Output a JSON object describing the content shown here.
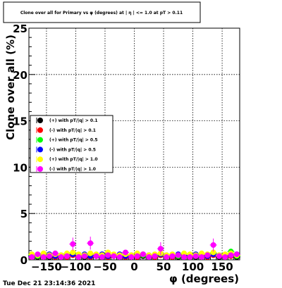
{
  "title": "Clone  over all for Primary vs φ (degrees) at | η | <= 1.0 at pT > 0.11",
  "timestamp": "Tue Dec 21 23:14:36 2021",
  "chart_data": {
    "type": "scatter",
    "xlabel": "φ (degrees)",
    "ylabel": "Clone  over all (%)",
    "xlim": [
      -180,
      180
    ],
    "ylim": [
      0,
      25
    ],
    "xticks": [
      "−150",
      "−100",
      "−50",
      "0",
      "50",
      "100",
      "150"
    ],
    "xtick_values": [
      -150,
      -100,
      -50,
      0,
      50,
      100,
      150
    ],
    "yticks": [
      "0",
      "5",
      "10",
      "15",
      "20",
      "25"
    ],
    "ytick_values": [
      0,
      5,
      10,
      15,
      20,
      25
    ],
    "grid": true,
    "legend_position": "left-middle",
    "x": [
      -175,
      -165,
      -155,
      -145,
      -135,
      -125,
      -115,
      -105,
      -95,
      -85,
      -75,
      -65,
      -55,
      -45,
      -35,
      -25,
      -15,
      -5,
      5,
      15,
      25,
      35,
      45,
      55,
      65,
      75,
      85,
      95,
      105,
      115,
      125,
      135,
      145,
      155,
      165,
      175
    ],
    "series": [
      {
        "name": "(+) with pT/|q| > 0.1",
        "color": "#000000",
        "values": [
          0.4,
          0.3,
          0.5,
          0.3,
          0.4,
          0.3,
          0.5,
          0.6,
          0.4,
          0.3,
          0.5,
          0.4,
          0.3,
          0.5,
          0.4,
          0.3,
          0.4,
          0.3,
          0.5,
          0.4,
          0.3,
          0.4,
          0.5,
          0.3,
          0.4,
          0.3,
          0.5,
          0.4,
          0.3,
          0.5,
          0.4,
          0.6,
          0.3,
          0.4,
          0.5,
          0.3
        ]
      },
      {
        "name": "(-) with pT/|q| > 0.1",
        "color": "#ff0000",
        "values": [
          0.3,
          0.4,
          0.3,
          0.5,
          0.3,
          0.4,
          0.3,
          0.5,
          0.4,
          0.5,
          0.3,
          0.4,
          0.5,
          0.3,
          0.4,
          0.5,
          0.3,
          0.4,
          0.3,
          0.5,
          0.4,
          0.3,
          0.5,
          0.4,
          0.3,
          0.5,
          0.4,
          0.3,
          0.5,
          0.4,
          0.3,
          0.5,
          0.4,
          0.3,
          0.4,
          0.5
        ]
      },
      {
        "name": "(+) with pT/|q| > 0.5",
        "color": "#00ff00",
        "values": [
          0.5,
          0.4,
          0.6,
          0.4,
          0.5,
          0.4,
          0.6,
          0.7,
          0.5,
          0.4,
          0.6,
          0.5,
          0.4,
          0.6,
          0.5,
          0.4,
          0.5,
          0.4,
          0.6,
          0.5,
          0.4,
          0.5,
          0.6,
          0.4,
          0.5,
          0.4,
          0.6,
          0.5,
          0.4,
          0.6,
          0.5,
          0.7,
          0.4,
          0.5,
          0.9,
          0.4
        ]
      },
      {
        "name": "(-) with pT/|q| > 0.5",
        "color": "#0000ff",
        "values": [
          0.4,
          0.5,
          0.4,
          0.6,
          0.4,
          0.5,
          0.4,
          0.6,
          0.5,
          0.6,
          0.4,
          0.5,
          0.6,
          0.4,
          0.5,
          0.6,
          0.4,
          0.5,
          0.4,
          0.6,
          0.5,
          0.4,
          0.6,
          0.5,
          0.4,
          0.6,
          0.5,
          0.4,
          0.6,
          0.5,
          0.4,
          0.6,
          0.5,
          0.4,
          0.5,
          0.6
        ]
      },
      {
        "name": "(+) with pT/|q| > 1.0",
        "color": "#ffff00",
        "values": [
          0.6,
          0.5,
          0.7,
          0.5,
          0.6,
          0.5,
          0.7,
          0.8,
          0.6,
          0.5,
          0.7,
          0.6,
          0.5,
          0.8,
          0.6,
          0.5,
          0.6,
          0.5,
          0.7,
          0.6,
          0.5,
          0.6,
          0.7,
          0.5,
          0.6,
          0.5,
          0.7,
          0.6,
          0.5,
          0.7,
          0.6,
          0.8,
          0.5,
          0.6,
          0.7,
          0.5
        ]
      },
      {
        "name": "(-) with pT/|q| > 1.0",
        "color": "#ff00ff",
        "values": [
          0.3,
          0.6,
          0.3,
          0.4,
          0.7,
          0.3,
          0.4,
          1.7,
          0.3,
          0.4,
          1.8,
          0.4,
          0.3,
          0.5,
          0.4,
          0.3,
          0.8,
          0.3,
          0.4,
          0.6,
          0.3,
          0.4,
          1.2,
          0.3,
          0.4,
          0.5,
          0.3,
          0.3,
          0.4,
          0.3,
          0.5,
          1.6,
          0.4,
          0.3,
          0.5,
          0.6
        ]
      }
    ]
  }
}
